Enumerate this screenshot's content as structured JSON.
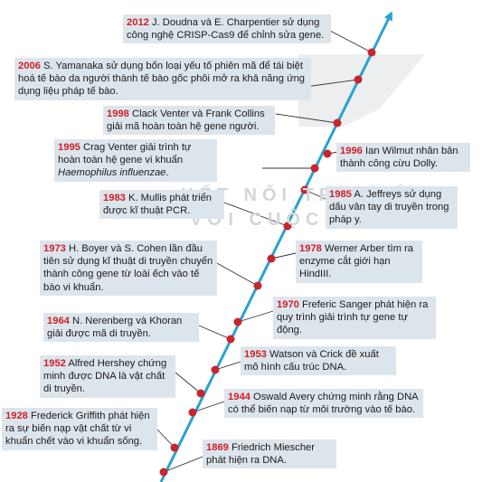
{
  "watermark": {
    "line1": "KẾT NỐI TRI THỨC",
    "line2": "VỚI CUỘC SỐNG"
  },
  "colors": {
    "axis": "#29a3cf",
    "node": "#c8252d",
    "box": "#dde5ec",
    "year": "#d0202a"
  },
  "events": [
    {
      "year": "2012",
      "text": "J. Doudna và E. Charpentier sử dụng công nghệ CRISP-Cas9 để chỉnh sửa gene."
    },
    {
      "year": "2006",
      "text": "S. Yamanaka sử dụng bốn loại yếu tố phiên mã để tái biệt hoá tế bào da người thành tế bào gốc phôi mở ra khả năng ứng dụng liệu pháp tế bào."
    },
    {
      "year": "1998",
      "text": "Clack Venter và Frank Collins giải mã hoàn toàn hệ gene người."
    },
    {
      "year": "1996",
      "text": "Ian Wilmut nhân bản thành công cừu Dolly."
    },
    {
      "year": "1995",
      "text": "Crag Venter giải trình tự hoàn toàn hệ gene vi khuẩn ",
      "italic": "Haemophilus influenzae",
      "after": "."
    },
    {
      "year": "1985",
      "text": "A. Jeffreys sử dụng dấu vân tay di truyền trong pháp y."
    },
    {
      "year": "1983",
      "text": "K. Mullis phát triển được kĩ thuật PCR."
    },
    {
      "year": "1978",
      "text": "Werner Arber tìm ra enzyme cắt giới hạn HindIII."
    },
    {
      "year": "1973",
      "text": "H. Boyer và S. Cohen lần đầu tiên sử dụng kĩ thuật di truyền chuyển thành công gene từ loài ếch vào tế bào vi khuẩn."
    },
    {
      "year": "1970",
      "text": "Freferic Sanger phát hiện ra quy trình giải trình tự gene tự động."
    },
    {
      "year": "1964",
      "text": "N. Nerenberg và Khoran giải được mã di truyền."
    },
    {
      "year": "1953",
      "text": "Watson và Crick đề xuất mô hình cấu trúc DNA."
    },
    {
      "year": "1952",
      "text": "Alfred Hershey chứng minh được DNA là vật chất di truyền."
    },
    {
      "year": "1944",
      "text": "Oswald Avery chứng minh rằng DNA có thể biến nạp từ môi trường vào tế bào."
    },
    {
      "year": "1928",
      "text": "Frederick Griffith phát hiện ra sự biến nạp vật chất từ vi khuẩn chết vào vi khuẩn sống."
    },
    {
      "year": "1869",
      "text": "Friedrich Miescher phát hiện ra DNA."
    }
  ]
}
